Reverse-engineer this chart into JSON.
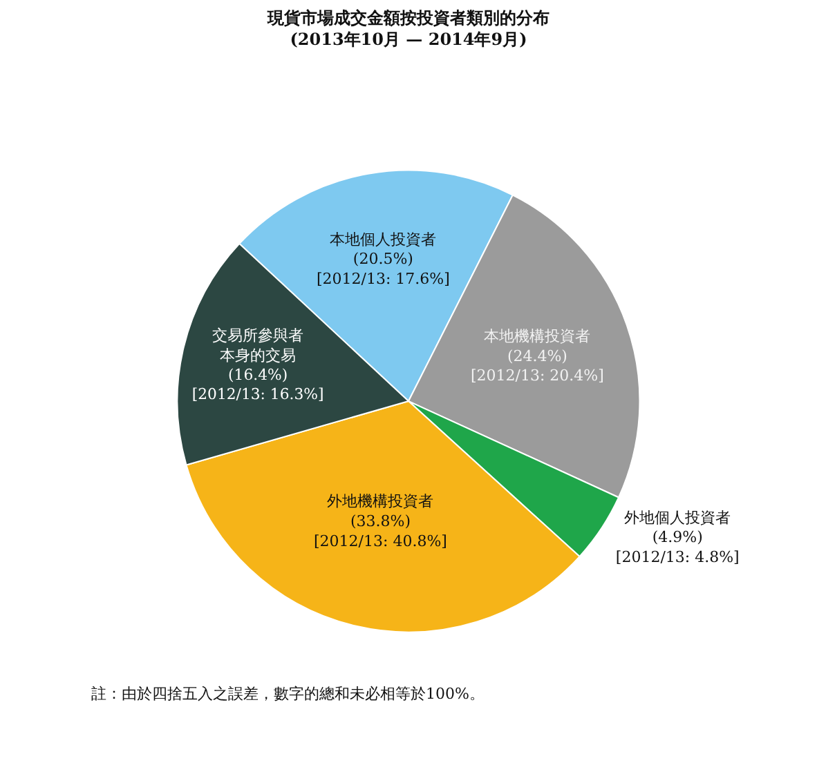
{
  "chart_data": {
    "type": "pie",
    "title": "現貨市場成交金額按投資者類別的分布\n(2013年10月 — 2014年9月)",
    "categories": [
      "本地個人投資者",
      "本地機構投資者",
      "外地個人投資者",
      "外地機構投資者",
      "交易所參與者本身的交易"
    ],
    "values": [
      20.5,
      24.4,
      4.9,
      33.8,
      16.4
    ],
    "colors": [
      "#7ec9f0",
      "#9b9b9b",
      "#1fa64a",
      "#f6b418",
      "#2c4742"
    ],
    "value_labels": [
      "(20.5%)\n[2012/13: 17.6%]",
      "(24.4%)\n[2012/13: 20.4%]",
      "(4.9%)\n[2012/13: 4.8%]",
      "(33.8%)\n[2012/13: 40.8%]",
      "(16.4%)\n[2012/13: 16.3%]"
    ],
    "annotations": [
      "註：由於四捨五入之誤差，數字的總和未必相等於100%。"
    ],
    "legend": false
  }
}
